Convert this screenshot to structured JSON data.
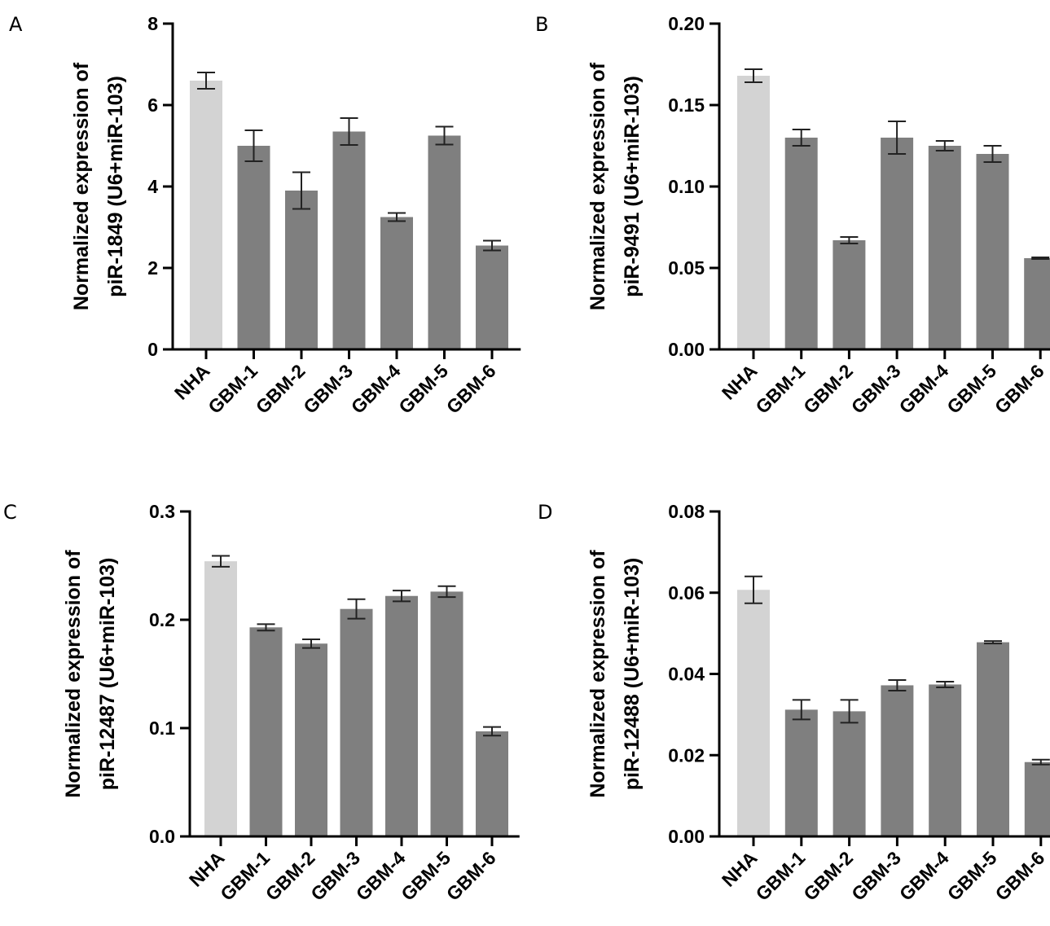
{
  "colors": {
    "control_bar": "#d3d3d3",
    "tumor_bar": "#7f7f7f",
    "axis": "#000000"
  },
  "chart_data": [
    {
      "panel": "A",
      "type": "bar",
      "categories": [
        "NHA",
        "GBM-1",
        "GBM-2",
        "GBM-3",
        "GBM-4",
        "GBM-5",
        "GBM-6"
      ],
      "values": [
        6.6,
        5.0,
        3.9,
        5.35,
        3.25,
        5.25,
        2.55
      ],
      "errors": [
        0.2,
        0.38,
        0.45,
        0.33,
        0.1,
        0.22,
        0.12
      ],
      "ylabel_lines": [
        "Normalized expression of",
        "piR-1849 (U6+miR-103)"
      ],
      "ylim": [
        0,
        8
      ],
      "yticks": [
        "0",
        "2",
        "4",
        "6",
        "8"
      ]
    },
    {
      "panel": "B",
      "type": "bar",
      "categories": [
        "NHA",
        "GBM-1",
        "GBM-2",
        "GBM-3",
        "GBM-4",
        "GBM-5",
        "GBM-6"
      ],
      "values": [
        0.168,
        0.13,
        0.067,
        0.13,
        0.125,
        0.12,
        0.056
      ],
      "errors": [
        0.004,
        0.005,
        0.002,
        0.01,
        0.003,
        0.005,
        0.0005
      ],
      "ylabel_lines": [
        "Normalized expression of",
        "piR-9491 (U6+miR-103)"
      ],
      "ylim": [
        0,
        0.2
      ],
      "yticks": [
        "0.00",
        "0.05",
        "0.10",
        "0.15",
        "0.20"
      ]
    },
    {
      "panel": "C",
      "type": "bar",
      "categories": [
        "NHA",
        "GBM-1",
        "GBM-2",
        "GBM-3",
        "GBM-4",
        "GBM-5",
        "GBM-6"
      ],
      "values": [
        0.254,
        0.193,
        0.178,
        0.21,
        0.222,
        0.226,
        0.097
      ],
      "errors": [
        0.005,
        0.003,
        0.004,
        0.009,
        0.005,
        0.005,
        0.004
      ],
      "ylabel_lines": [
        "Normalized expression of",
        "piR-12487 (U6+miR-103)"
      ],
      "ylim": [
        0,
        0.3
      ],
      "yticks": [
        "0.0",
        "0.1",
        "0.2",
        "0.3"
      ]
    },
    {
      "panel": "D",
      "type": "bar",
      "categories": [
        "NHA",
        "GBM-1",
        "GBM-2",
        "GBM-3",
        "GBM-4",
        "GBM-5",
        "GBM-6"
      ],
      "values": [
        0.0607,
        0.0312,
        0.0308,
        0.0372,
        0.0374,
        0.0478,
        0.0183
      ],
      "errors": [
        0.0033,
        0.0024,
        0.0028,
        0.0013,
        0.0007,
        0.0003,
        0.0006
      ],
      "ylabel_lines": [
        "Normalized expression of",
        "piR-12488 (U6+miR-103)"
      ],
      "ylim": [
        0,
        0.08
      ],
      "yticks": [
        "0.00",
        "0.02",
        "0.04",
        "0.06",
        "0.08"
      ]
    }
  ]
}
